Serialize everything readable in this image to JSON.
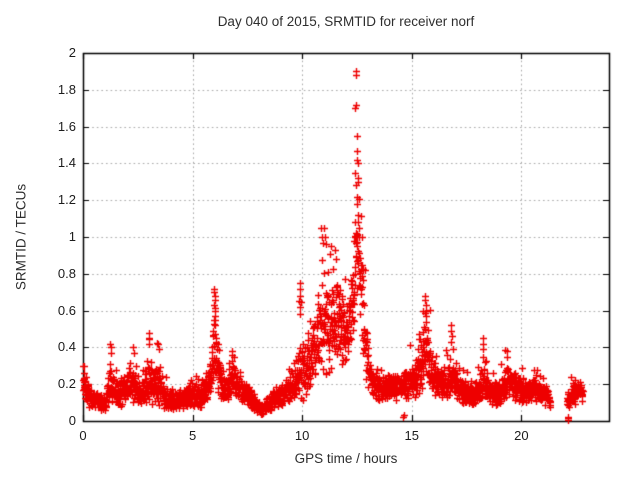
{
  "chart_data": {
    "type": "scatter",
    "title": "Day 040 of 2015, SRMTID for receiver norf",
    "xlabel": "GPS time / hours",
    "ylabel": "SRMTID / TECUs",
    "xlim": [
      0,
      24
    ],
    "ylim": [
      0,
      2
    ],
    "x_tick_values": [
      0,
      5,
      10,
      15,
      20
    ],
    "x_tick_labels": [
      "0",
      "5",
      "10",
      "15",
      "20"
    ],
    "y_tick_values": [
      0,
      0.2,
      0.4,
      0.6,
      0.8,
      1,
      1.2,
      1.4,
      1.6,
      1.8,
      2
    ],
    "y_tick_labels": [
      "0",
      "0.2",
      "0.4",
      "0.6",
      "0.8",
      "1",
      "1.2",
      "1.4",
      "1.6",
      "1.8",
      "2"
    ],
    "grid": "dotted",
    "legend": "none",
    "marker": "plus-cross",
    "colors": {
      "marker": "#ee0000",
      "grid": "#a8a8a8",
      "axis": "#000000",
      "text": "#222222",
      "background": "#ffffff"
    },
    "peak": {
      "time_hours": 12.45,
      "value_tecus": 1.9
    },
    "data_start_hours": 0.0,
    "data_end_hours": 22.8,
    "gaps": [
      [
        21.32,
        22.08
      ]
    ],
    "sampling": {
      "interval_hours": 0.008333,
      "seed": 1337,
      "spike_probability": 0.07
    },
    "envelope": [
      [
        0.0,
        0.22,
        0.05
      ],
      [
        0.3,
        0.13,
        0.04
      ],
      [
        0.7,
        0.1,
        0.03
      ],
      [
        1.0,
        0.09,
        0.03
      ],
      [
        1.25,
        0.2,
        0.08
      ],
      [
        1.5,
        0.14,
        0.05
      ],
      [
        1.8,
        0.16,
        0.05
      ],
      [
        2.1,
        0.18,
        0.06
      ],
      [
        2.3,
        0.21,
        0.07
      ],
      [
        2.55,
        0.15,
        0.05
      ],
      [
        2.8,
        0.18,
        0.06
      ],
      [
        3.0,
        0.23,
        0.09
      ],
      [
        3.2,
        0.19,
        0.07
      ],
      [
        3.45,
        0.21,
        0.08
      ],
      [
        3.7,
        0.13,
        0.045
      ],
      [
        4.1,
        0.11,
        0.035
      ],
      [
        4.5,
        0.11,
        0.035
      ],
      [
        4.85,
        0.15,
        0.05
      ],
      [
        5.1,
        0.15,
        0.05
      ],
      [
        5.4,
        0.13,
        0.045
      ],
      [
        5.65,
        0.17,
        0.06
      ],
      [
        5.85,
        0.26,
        0.1
      ],
      [
        6.0,
        0.38,
        0.14
      ],
      [
        6.15,
        0.28,
        0.09
      ],
      [
        6.3,
        0.2,
        0.06
      ],
      [
        6.55,
        0.18,
        0.05
      ],
      [
        6.8,
        0.25,
        0.07
      ],
      [
        7.0,
        0.2,
        0.05
      ],
      [
        7.3,
        0.16,
        0.045
      ],
      [
        7.6,
        0.13,
        0.04
      ],
      [
        7.9,
        0.08,
        0.025
      ],
      [
        8.1,
        0.06,
        0.02
      ],
      [
        8.4,
        0.09,
        0.03
      ],
      [
        8.8,
        0.13,
        0.04
      ],
      [
        9.2,
        0.16,
        0.05
      ],
      [
        9.5,
        0.17,
        0.05
      ],
      [
        9.75,
        0.21,
        0.07
      ],
      [
        9.9,
        0.3,
        0.13
      ],
      [
        10.1,
        0.27,
        0.1
      ],
      [
        10.3,
        0.31,
        0.12
      ],
      [
        10.6,
        0.38,
        0.14
      ],
      [
        10.85,
        0.5,
        0.18
      ],
      [
        11.1,
        0.48,
        0.18
      ],
      [
        11.35,
        0.52,
        0.17
      ],
      [
        11.6,
        0.57,
        0.17
      ],
      [
        11.8,
        0.53,
        0.17
      ],
      [
        12.0,
        0.48,
        0.15
      ],
      [
        12.2,
        0.55,
        0.18
      ],
      [
        12.45,
        0.85,
        0.22
      ],
      [
        12.6,
        0.8,
        0.2
      ],
      [
        12.8,
        0.55,
        0.18
      ],
      [
        13.0,
        0.32,
        0.1
      ],
      [
        13.2,
        0.2,
        0.05
      ],
      [
        13.5,
        0.18,
        0.045
      ],
      [
        14.0,
        0.18,
        0.045
      ],
      [
        14.5,
        0.19,
        0.05
      ],
      [
        14.8,
        0.2,
        0.055
      ],
      [
        15.1,
        0.22,
        0.07
      ],
      [
        15.45,
        0.32,
        0.12
      ],
      [
        15.65,
        0.38,
        0.13
      ],
      [
        15.9,
        0.28,
        0.09
      ],
      [
        16.2,
        0.21,
        0.06
      ],
      [
        16.5,
        0.2,
        0.06
      ],
      [
        16.8,
        0.26,
        0.09
      ],
      [
        17.1,
        0.18,
        0.05
      ],
      [
        17.4,
        0.16,
        0.05
      ],
      [
        17.7,
        0.14,
        0.04
      ],
      [
        18.0,
        0.15,
        0.05
      ],
      [
        18.25,
        0.22,
        0.08
      ],
      [
        18.5,
        0.16,
        0.05
      ],
      [
        18.8,
        0.14,
        0.04
      ],
      [
        19.1,
        0.17,
        0.05
      ],
      [
        19.35,
        0.23,
        0.06
      ],
      [
        19.6,
        0.2,
        0.05
      ],
      [
        19.9,
        0.17,
        0.05
      ],
      [
        20.2,
        0.16,
        0.04
      ],
      [
        20.5,
        0.18,
        0.05
      ],
      [
        20.8,
        0.16,
        0.04
      ],
      [
        21.0,
        0.14,
        0.04
      ],
      [
        21.3,
        0.12,
        0.035
      ],
      [
        22.1,
        0.11,
        0.03
      ],
      [
        22.3,
        0.13,
        0.04
      ],
      [
        22.55,
        0.17,
        0.045
      ],
      [
        22.8,
        0.16,
        0.04
      ]
    ],
    "spike_points": [
      [
        0.02,
        0.3
      ],
      [
        0.04,
        0.3
      ],
      [
        0.05,
        0.26
      ],
      [
        0.07,
        0.22
      ],
      [
        1.24,
        0.42
      ],
      [
        1.26,
        0.4
      ],
      [
        1.27,
        0.37
      ],
      [
        2.29,
        0.4
      ],
      [
        2.31,
        0.37
      ],
      [
        2.99,
        0.48
      ],
      [
        3.01,
        0.45
      ],
      [
        3.0,
        0.42
      ],
      [
        3.44,
        0.42
      ],
      [
        3.46,
        0.39
      ],
      [
        5.96,
        0.55
      ],
      [
        5.97,
        0.72
      ],
      [
        5.98,
        0.63
      ],
      [
        5.99,
        0.7
      ],
      [
        6.0,
        0.68
      ],
      [
        6.01,
        0.6
      ],
      [
        6.02,
        0.66
      ],
      [
        6.03,
        0.57
      ],
      [
        6.04,
        0.52
      ],
      [
        6.05,
        0.45
      ],
      [
        6.8,
        0.38
      ],
      [
        6.82,
        0.36
      ],
      [
        9.87,
        0.65
      ],
      [
        9.88,
        0.75
      ],
      [
        9.89,
        0.58
      ],
      [
        9.9,
        0.72
      ],
      [
        9.91,
        0.62
      ],
      [
        9.92,
        0.68
      ],
      [
        10.87,
        1.05
      ],
      [
        10.9,
        1.0
      ],
      [
        10.95,
        0.97
      ],
      [
        11.0,
        1.05
      ],
      [
        11.04,
        1.0
      ],
      [
        11.08,
        0.96
      ],
      [
        11.3,
        0.95
      ],
      [
        11.5,
        0.93
      ],
      [
        11.55,
        0.88
      ],
      [
        12.38,
        0.98
      ],
      [
        12.4,
        1.08
      ],
      [
        12.42,
        1.35
      ],
      [
        12.43,
        1.7
      ],
      [
        12.44,
        1.9
      ],
      [
        12.45,
        1.28
      ],
      [
        12.46,
        1.88
      ],
      [
        12.47,
        1.72
      ],
      [
        12.48,
        1.47
      ],
      [
        12.49,
        1.22
      ],
      [
        12.5,
        1.55
      ],
      [
        12.51,
        1.18
      ],
      [
        12.52,
        1.42
      ],
      [
        12.53,
        1.3
      ],
      [
        12.55,
        1.4
      ],
      [
        12.56,
        1.12
      ],
      [
        12.58,
        1.05
      ],
      [
        12.61,
        1.0
      ],
      [
        14.6,
        0.02
      ],
      [
        14.66,
        0.03
      ],
      [
        15.6,
        0.5
      ],
      [
        15.62,
        0.66
      ],
      [
        15.63,
        0.57
      ],
      [
        15.64,
        0.63
      ],
      [
        15.66,
        0.6
      ],
      [
        15.67,
        0.54
      ],
      [
        16.78,
        0.52
      ],
      [
        16.79,
        0.43
      ],
      [
        16.8,
        0.49
      ],
      [
        16.82,
        0.46
      ],
      [
        18.23,
        0.45
      ],
      [
        18.24,
        0.39
      ],
      [
        18.26,
        0.42
      ],
      [
        19.33,
        0.38
      ],
      [
        19.36,
        0.35
      ],
      [
        22.11,
        0.015
      ],
      [
        22.13,
        0.008
      ],
      [
        22.15,
        0.02
      ]
    ]
  }
}
